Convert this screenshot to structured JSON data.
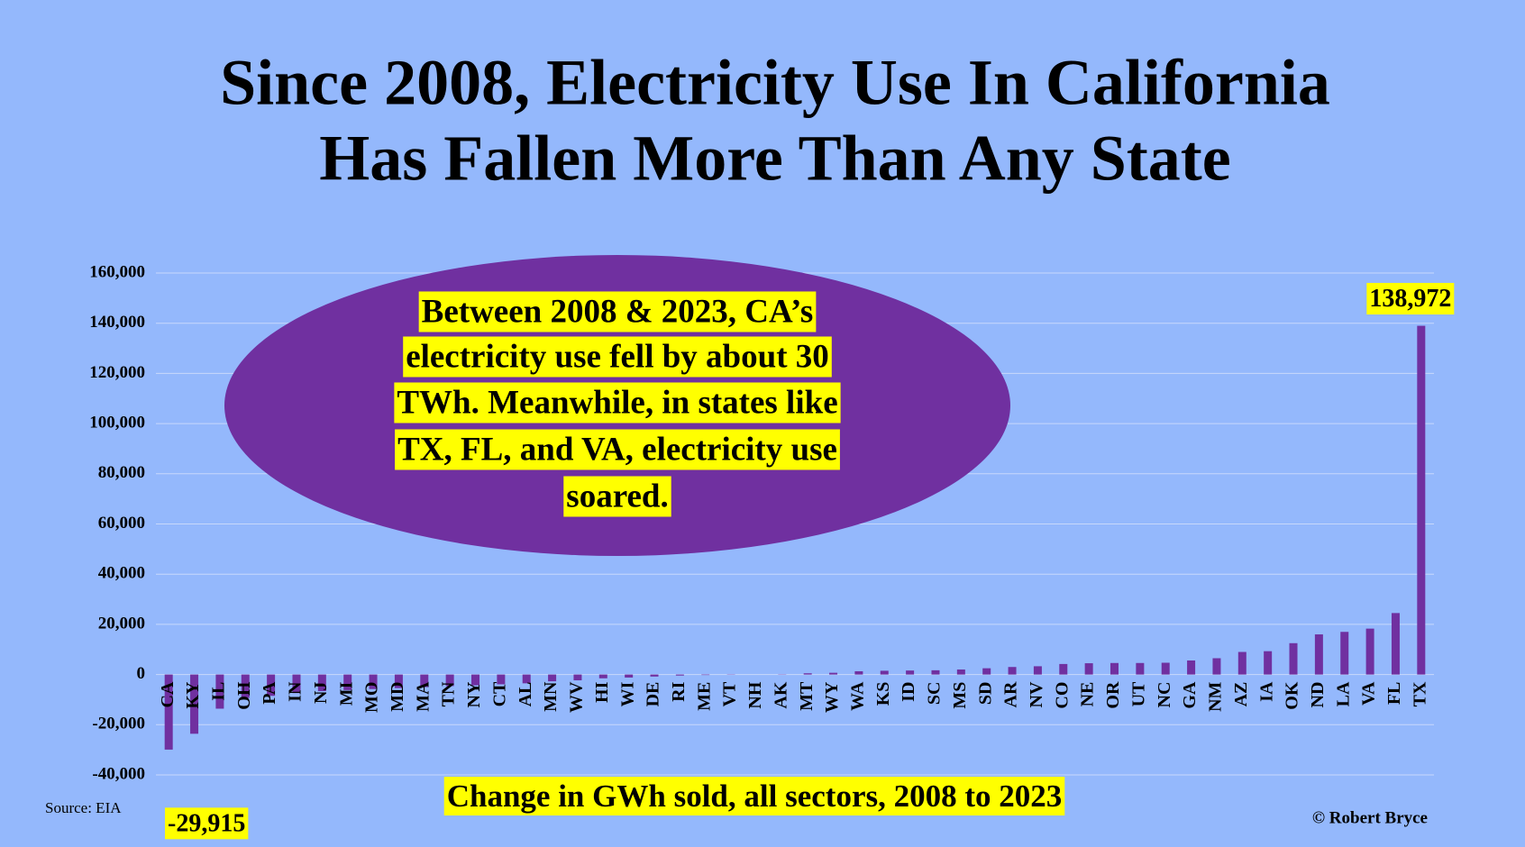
{
  "chart_data": {
    "type": "bar",
    "title_lines": [
      "Since 2008, Electricity Use In California",
      "Has Fallen More Than Any State"
    ],
    "annotation_lines": [
      "Between 2008 & 2023, CA’s",
      "electricity use fell by about 30",
      "TWh. Meanwhile, in states like",
      "TX, FL, and VA, electricity use",
      "soared."
    ],
    "x_label": "Change in GWh sold, all sectors, 2008 to 2023",
    "source": "Source: EIA",
    "credit": "© Robert Bryce",
    "categories": [
      "CA",
      "KY",
      "IL",
      "OH",
      "PA",
      "IN",
      "NJ",
      "MI",
      "MO",
      "MD",
      "MA",
      "TN",
      "NY",
      "CT",
      "AL",
      "MN",
      "WV",
      "HI",
      "WI",
      "DE",
      "RI",
      "ME",
      "VT",
      "NH",
      "AK",
      "MT",
      "WY",
      "WA",
      "KS",
      "ID",
      "SC",
      "MS",
      "SD",
      "AR",
      "NV",
      "CO",
      "NE",
      "OR",
      "UT",
      "NC",
      "GA",
      "NM",
      "AZ",
      "IA",
      "OK",
      "ND",
      "LA",
      "VA",
      "FL",
      "TX"
    ],
    "values": [
      -29915,
      -23600,
      -13600,
      -9300,
      -8500,
      -7400,
      -6600,
      -6200,
      -5800,
      -5400,
      -5000,
      -4600,
      -4300,
      -3900,
      -3500,
      -2700,
      -2300,
      -1500,
      -1200,
      -800,
      -400,
      -200,
      -100,
      0,
      100,
      500,
      700,
      1300,
      1500,
      1600,
      1700,
      2000,
      2500,
      3000,
      3300,
      4200,
      4500,
      4600,
      4600,
      4700,
      5600,
      6500,
      9000,
      9300,
      12500,
      16000,
      17000,
      18300,
      24500,
      138972
    ],
    "value_labels": [
      "-29,915",
      null,
      null,
      null,
      null,
      null,
      null,
      null,
      null,
      null,
      null,
      null,
      null,
      null,
      null,
      null,
      null,
      null,
      null,
      null,
      null,
      null,
      null,
      null,
      null,
      null,
      null,
      null,
      null,
      null,
      null,
      null,
      null,
      null,
      null,
      null,
      null,
      null,
      null,
      null,
      null,
      null,
      null,
      null,
      null,
      null,
      null,
      null,
      null,
      "138,972"
    ],
    "color": "#7030a0",
    "ylim": [
      -40000,
      160000
    ],
    "yticks": [
      {
        "value": -40000,
        "label": "-40,000"
      },
      {
        "value": -20000,
        "label": "-20,000"
      },
      0,
      {
        "value": 20000,
        "label": "20,000"
      },
      {
        "value": 40000,
        "label": "40,000"
      },
      {
        "value": 60000,
        "label": "60,000"
      },
      {
        "value": 80000,
        "label": "80,000"
      },
      {
        "value": 100000,
        "label": "100,000"
      },
      {
        "value": 120000,
        "label": "120,000"
      },
      {
        "value": 140000,
        "label": "140,000"
      },
      {
        "value": 160000,
        "label": "160,000"
      }
    ],
    "grid": true
  }
}
